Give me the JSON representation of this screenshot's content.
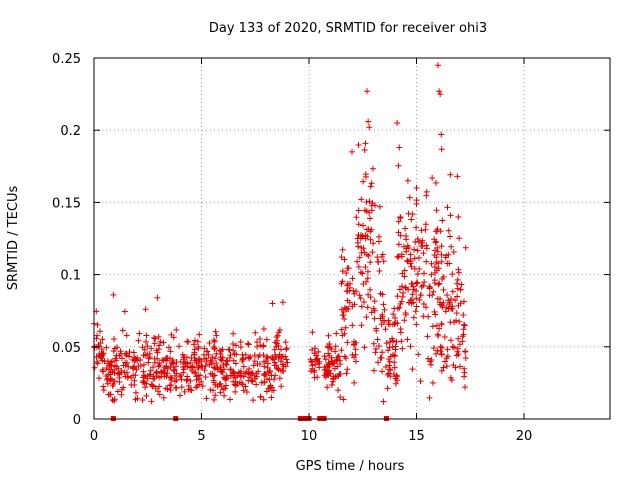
{
  "chart_data": {
    "type": "scatter",
    "title": "Day 133 of 2020, SRMTID for receiver ohi3",
    "xlabel": "GPS time / hours",
    "ylabel": "SRMTID / TECUs",
    "xlim": [
      0,
      24
    ],
    "ylim": [
      0,
      0.25
    ],
    "xticks": [
      0,
      5,
      10,
      15,
      20
    ],
    "xtick_labels": [
      "0",
      "5",
      "10",
      "15",
      "20"
    ],
    "yticks": [
      0,
      0.05,
      0.1,
      0.15,
      0.2,
      0.25
    ],
    "ytick_labels": [
      "0",
      "0.05",
      "0.1",
      "0.15",
      "0.2",
      "0.25"
    ],
    "grid": true,
    "marker": "plus",
    "color": "#e00000",
    "segments": [
      {
        "x_start": 0.0,
        "x_end": 0.4,
        "mean": 0.047,
        "spread": 0.011,
        "count": 28
      },
      {
        "x_start": 0.4,
        "x_end": 0.9,
        "mean": 0.031,
        "spread": 0.009,
        "count": 34
      },
      {
        "x_start": 0.9,
        "x_end": 3.8,
        "mean": 0.035,
        "spread": 0.011,
        "count": 180
      },
      {
        "x_start": 3.8,
        "x_end": 8.4,
        "mean": 0.035,
        "spread": 0.011,
        "count": 290
      },
      {
        "x_start": 8.4,
        "x_end": 9.0,
        "mean": 0.043,
        "spread": 0.01,
        "count": 40
      },
      {
        "x_start": 10.0,
        "x_end": 10.5,
        "mean": 0.041,
        "spread": 0.008,
        "count": 24
      },
      {
        "x_start": 10.7,
        "x_end": 11.5,
        "mean": 0.036,
        "spread": 0.009,
        "count": 60
      },
      {
        "x_start": 11.5,
        "x_end": 12.2,
        "mean": 0.075,
        "spread": 0.022,
        "count": 55
      },
      {
        "x_start": 12.2,
        "x_end": 13.0,
        "mean": 0.12,
        "spread": 0.03,
        "count": 70
      },
      {
        "x_start": 13.0,
        "x_end": 13.6,
        "mean": 0.08,
        "spread": 0.025,
        "count": 40
      },
      {
        "x_start": 13.6,
        "x_end": 14.1,
        "mean": 0.045,
        "spread": 0.012,
        "count": 40
      },
      {
        "x_start": 14.1,
        "x_end": 15.4,
        "mean": 0.095,
        "spread": 0.03,
        "count": 110
      },
      {
        "x_start": 15.4,
        "x_end": 16.6,
        "mean": 0.095,
        "spread": 0.032,
        "count": 110
      },
      {
        "x_start": 16.6,
        "x_end": 17.3,
        "mean": 0.075,
        "spread": 0.025,
        "count": 55
      }
    ],
    "peaks": [
      {
        "x": 0.0,
        "y": 0.066
      },
      {
        "x": 0.9,
        "y": 0.086
      },
      {
        "x": 2.4,
        "y": 0.076
      },
      {
        "x": 2.95,
        "y": 0.084
      },
      {
        "x": 8.3,
        "y": 0.08
      },
      {
        "x": 12.0,
        "y": 0.185
      },
      {
        "x": 12.7,
        "y": 0.227
      },
      {
        "x": 12.75,
        "y": 0.206
      },
      {
        "x": 12.8,
        "y": 0.202
      },
      {
        "x": 13.3,
        "y": 0.147
      },
      {
        "x": 14.1,
        "y": 0.205
      },
      {
        "x": 14.2,
        "y": 0.188
      },
      {
        "x": 14.6,
        "y": 0.165
      },
      {
        "x": 15.0,
        "y": 0.16
      },
      {
        "x": 16.0,
        "y": 0.245
      },
      {
        "x": 16.05,
        "y": 0.227
      },
      {
        "x": 16.1,
        "y": 0.225
      },
      {
        "x": 16.15,
        "y": 0.197
      },
      {
        "x": 16.9,
        "y": 0.168
      }
    ],
    "zero_markers": [
      0.9,
      3.8,
      9.6,
      9.8,
      10.0,
      10.5,
      10.6,
      10.7,
      13.6
    ]
  }
}
